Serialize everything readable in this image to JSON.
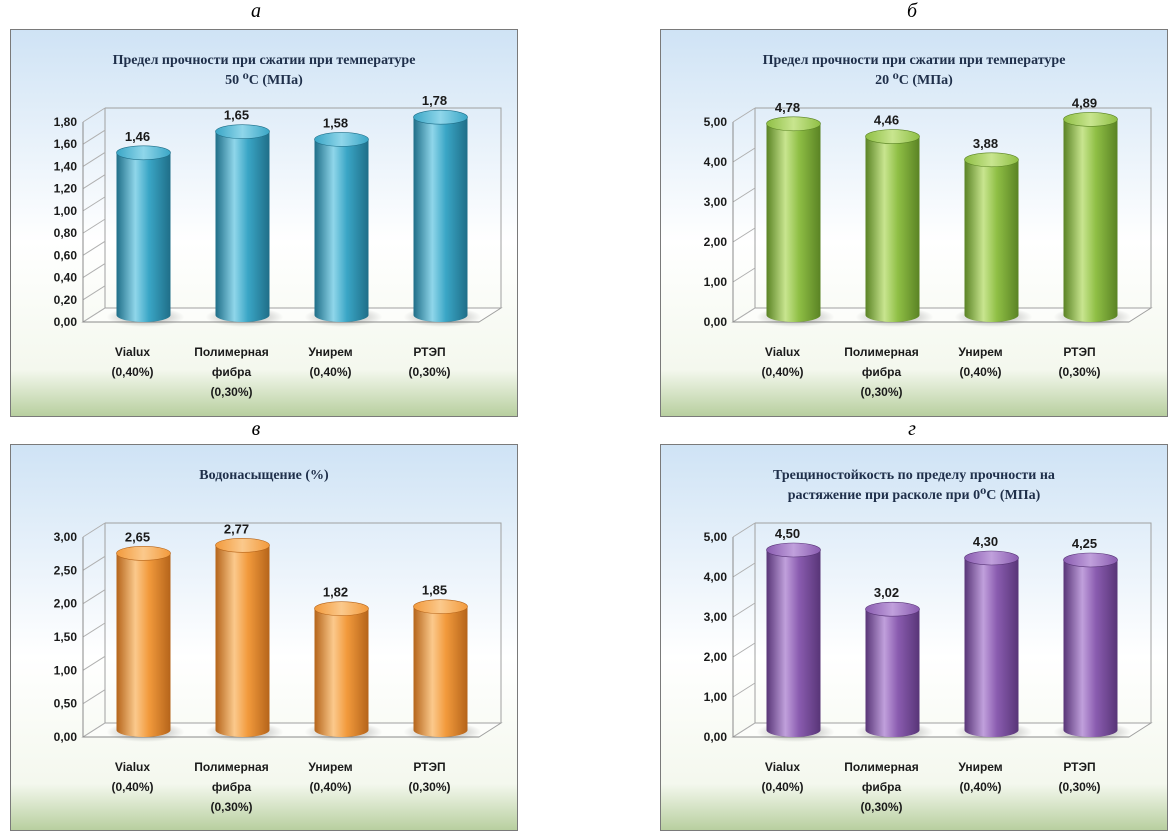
{
  "chart_data": [
    {
      "letter": "а",
      "type": "bar",
      "title": [
        "Предел прочности при сжатии при температуре",
        "50 ⁰C (МПа)"
      ],
      "categories": [
        [
          "Vialux",
          "(0,40%)"
        ],
        [
          "Полимерная",
          "фибра",
          "(0,30%)"
        ],
        [
          "Унирем",
          "(0,40%)"
        ],
        [
          "РТЭП",
          "(0,30%)"
        ]
      ],
      "values": [
        1.46,
        1.65,
        1.58,
        1.78
      ],
      "value_labels": [
        "1,46",
        "1,65",
        "1,58",
        "1,78"
      ],
      "yticks": [
        "0,00",
        "0,20",
        "0,40",
        "0,60",
        "0,80",
        "1,00",
        "1,20",
        "1,40",
        "1,60",
        "1,80"
      ],
      "ylim": [
        0,
        1.8
      ],
      "color": "#3aa6c6",
      "color_dark": "#1f6e88",
      "color_light": "#8fd6ea"
    },
    {
      "letter": "б",
      "type": "bar",
      "title": [
        "Предел прочности при сжатии при температуре",
        "20 ⁰C (МПа)"
      ],
      "categories": [
        [
          "Vialux",
          "(0,40%)"
        ],
        [
          "Полимерная",
          "фибра",
          "(0,30%)"
        ],
        [
          "Унирем",
          "(0,40%)"
        ],
        [
          "РТЭП",
          "(0,30%)"
        ]
      ],
      "values": [
        4.78,
        4.46,
        3.88,
        4.89
      ],
      "value_labels": [
        "4,78",
        "4,46",
        "3,88",
        "4,89"
      ],
      "yticks": [
        "0,00",
        "1,00",
        "2,00",
        "3,00",
        "4,00",
        "5,00"
      ],
      "ylim": [
        0,
        5
      ],
      "color": "#8fbf45",
      "color_dark": "#5a8324",
      "color_light": "#c8e58f"
    },
    {
      "letter": "в",
      "type": "bar",
      "title": [
        "Водонасыщение (%)"
      ],
      "categories": [
        [
          "Vialux",
          "(0,40%)"
        ],
        [
          "Полимерная",
          "фибра",
          "(0,30%)"
        ],
        [
          "Унирем",
          "(0,40%)"
        ],
        [
          "РТЭП",
          "(0,30%)"
        ]
      ],
      "values": [
        2.65,
        2.77,
        1.82,
        1.85
      ],
      "value_labels": [
        "2,65",
        "2,77",
        "1,82",
        "1,85"
      ],
      "yticks": [
        "0,00",
        "0,50",
        "1,00",
        "1,50",
        "2,00",
        "2,50",
        "3,00"
      ],
      "ylim": [
        0,
        3
      ],
      "color": "#f29a3c",
      "color_dark": "#b5641a",
      "color_light": "#fbc98c"
    },
    {
      "letter": "г",
      "type": "bar",
      "title": [
        "Трещиностойкость по пределу прочности на",
        "растяжение при расколе при 0⁰C (МПа)"
      ],
      "categories": [
        [
          "Vialux",
          "(0,40%)"
        ],
        [
          "Полимерная",
          "фибра",
          "(0,30%)"
        ],
        [
          "Унирем",
          "(0,40%)"
        ],
        [
          "РТЭП",
          "(0,30%)"
        ]
      ],
      "values": [
        4.5,
        3.02,
        4.3,
        4.25
      ],
      "value_labels": [
        "4,50",
        "3,02",
        "4,30",
        "4,25"
      ],
      "yticks": [
        "0,00",
        "1,00",
        "2,00",
        "3,00",
        "4,00",
        "5,00"
      ],
      "ylim": [
        0,
        5
      ],
      "color": "#8a5cb0",
      "color_dark": "#583577",
      "color_light": "#c0a0dc"
    }
  ]
}
